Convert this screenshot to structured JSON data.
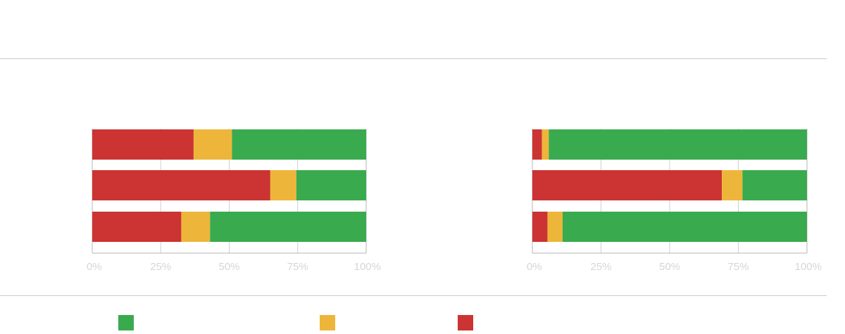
{
  "colors": {
    "green": "#3aaa4f",
    "yellow": "#edb63a",
    "red": "#cc3333",
    "grid": "#cfcfcf",
    "axis": "#b5b5b5"
  },
  "legend": [
    {
      "key": "green",
      "label": ""
    },
    {
      "key": "yellow",
      "label": ""
    },
    {
      "key": "red",
      "label": ""
    }
  ],
  "chart_data": [
    {
      "type": "bar",
      "orientation": "horizontal",
      "stacked": true,
      "categories": [
        "",
        "",
        ""
      ],
      "xlim": [
        0,
        100
      ],
      "xticks": [
        "0%",
        "25%",
        "50%",
        "75%",
        "100%"
      ],
      "grid": true,
      "series": [
        {
          "color": "red",
          "values": [
            37,
            65,
            32.5
          ]
        },
        {
          "color": "yellow",
          "values": [
            14,
            9.5,
            10.5
          ]
        },
        {
          "color": "green",
          "values": [
            49,
            25.5,
            57
          ]
        }
      ]
    },
    {
      "type": "bar",
      "orientation": "horizontal",
      "stacked": true,
      "categories": [
        "",
        "",
        ""
      ],
      "xlim": [
        0,
        100
      ],
      "xticks": [
        "0%",
        "25%",
        "50%",
        "75%",
        "100%"
      ],
      "grid": true,
      "series": [
        {
          "color": "red",
          "values": [
            3.5,
            69,
            5.5
          ]
        },
        {
          "color": "yellow",
          "values": [
            2.5,
            7.5,
            5.5
          ]
        },
        {
          "color": "green",
          "values": [
            94,
            23.5,
            89
          ]
        }
      ]
    }
  ]
}
